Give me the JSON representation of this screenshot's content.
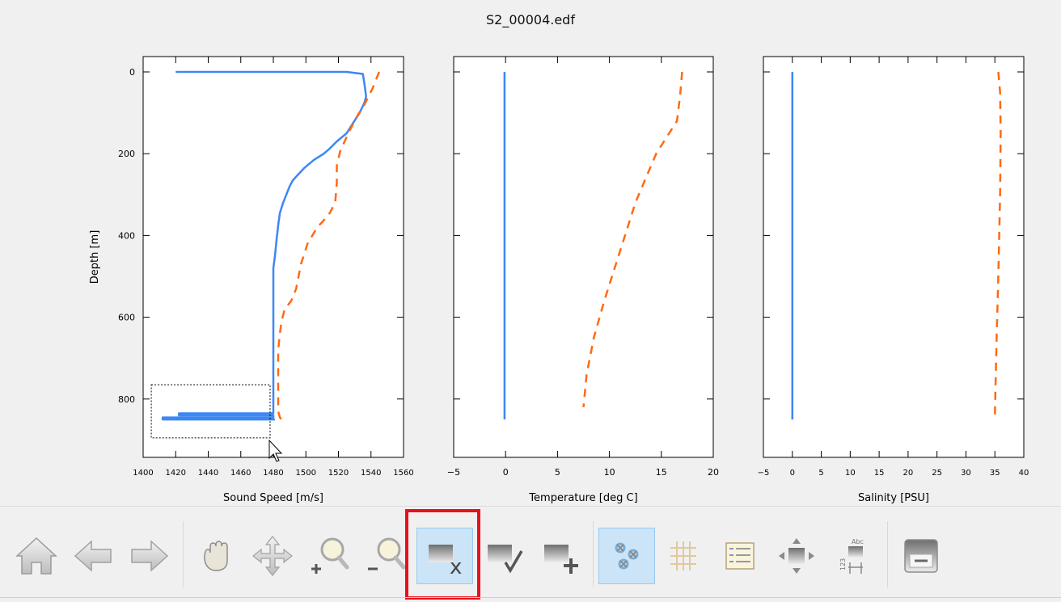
{
  "window": {
    "title": "S2_00004.edf"
  },
  "chart_data": [
    {
      "type": "line",
      "xlabel": "Sound Speed [m/s]",
      "ylabel": "Depth [m]",
      "xlim": [
        1400,
        1560
      ],
      "ylim": [
        850,
        0
      ],
      "y_inverted": true,
      "xticks": [
        1400,
        1420,
        1440,
        1460,
        1480,
        1500,
        1520,
        1540,
        1560
      ],
      "yticks": [
        0,
        200,
        400,
        600,
        800
      ],
      "series": [
        {
          "style": "solid",
          "color": "#3d87f5",
          "points": [
            [
              1420,
              0
            ],
            [
              1525,
              0
            ],
            [
              1535,
              5
            ],
            [
              1536,
              30
            ],
            [
              1537,
              60
            ],
            [
              1536,
              75
            ],
            [
              1533,
              100
            ],
            [
              1529,
              125
            ],
            [
              1525,
              150
            ],
            [
              1519,
              170
            ],
            [
              1514,
              190
            ],
            [
              1511,
              200
            ],
            [
              1505,
              215
            ],
            [
              1499,
              235
            ],
            [
              1492,
              265
            ],
            [
              1490,
              280
            ],
            [
              1488,
              300
            ],
            [
              1486,
              320
            ],
            [
              1484,
              345
            ],
            [
              1483,
              375
            ],
            [
              1482,
              410
            ],
            [
              1481,
              450
            ],
            [
              1480,
              480
            ],
            [
              1480,
              550
            ],
            [
              1480,
              650
            ],
            [
              1480,
              760
            ],
            [
              1480,
              835
            ],
            [
              1422,
              835
            ],
            [
              1422,
              840
            ],
            [
              1480,
              840
            ],
            [
              1480,
              845
            ],
            [
              1412,
              845
            ],
            [
              1412,
              850
            ],
            [
              1481,
              850
            ]
          ]
        },
        {
          "style": "dashed",
          "color": "#ff6a13",
          "points": [
            [
              1545,
              0
            ],
            [
              1541,
              40
            ],
            [
              1536,
              80
            ],
            [
              1532,
              105
            ],
            [
              1526,
              150
            ],
            [
              1521,
              195
            ],
            [
              1519,
              230
            ],
            [
              1519,
              270
            ],
            [
              1518,
              320
            ],
            [
              1514,
              350
            ],
            [
              1507,
              380
            ],
            [
              1501,
              420
            ],
            [
              1497,
              470
            ],
            [
              1494,
              530
            ],
            [
              1491,
              560
            ],
            [
              1487,
              580
            ],
            [
              1485,
              610
            ],
            [
              1484,
              640
            ],
            [
              1483,
              680
            ],
            [
              1483,
              760
            ],
            [
              1483,
              830
            ],
            [
              1484,
              845
            ],
            [
              1485,
              850
            ]
          ]
        }
      ]
    },
    {
      "type": "line",
      "xlabel": "Temperature [deg C]",
      "ylabel": "",
      "xlim": [
        -5,
        20
      ],
      "ylim": [
        850,
        0
      ],
      "y_inverted": true,
      "xticks": [
        -5,
        0,
        5,
        10,
        15,
        20
      ],
      "yticks": [
        0,
        200,
        400,
        600,
        800
      ],
      "series": [
        {
          "style": "solid",
          "color": "#3d87f5",
          "points": [
            [
              -0.1,
              0
            ],
            [
              -0.1,
              850
            ]
          ]
        },
        {
          "style": "dashed",
          "color": "#ff6a13",
          "points": [
            [
              17.0,
              0
            ],
            [
              16.8,
              60
            ],
            [
              16.5,
              120
            ],
            [
              15.5,
              160
            ],
            [
              14.5,
              200
            ],
            [
              13.5,
              260
            ],
            [
              12.5,
              320
            ],
            [
              11.5,
              400
            ],
            [
              10.5,
              480
            ],
            [
              9.5,
              560
            ],
            [
              8.5,
              650
            ],
            [
              7.8,
              740
            ],
            [
              7.5,
              820
            ]
          ]
        }
      ]
    },
    {
      "type": "line",
      "xlabel": "Salinity [PSU]",
      "ylabel": "",
      "xlim": [
        -5,
        40
      ],
      "ylim": [
        850,
        0
      ],
      "y_inverted": true,
      "xticks": [
        -5,
        0,
        5,
        10,
        15,
        20,
        25,
        30,
        35,
        40
      ],
      "yticks": [
        0,
        200,
        400,
        600,
        800
      ],
      "series": [
        {
          "style": "solid",
          "color": "#3d87f5",
          "points": [
            [
              0,
              0
            ],
            [
              0,
              850
            ]
          ]
        },
        {
          "style": "dashed",
          "color": "#ff6a13",
          "points": [
            [
              35.6,
              0
            ],
            [
              35.9,
              50
            ],
            [
              36.0,
              150
            ],
            [
              35.9,
              300
            ],
            [
              35.6,
              500
            ],
            [
              35.3,
              650
            ],
            [
              35.1,
              780
            ],
            [
              35.0,
              850
            ]
          ]
        }
      ]
    }
  ],
  "zoom_box": {
    "x0": 1405,
    "x1": 1478,
    "y0": 765,
    "y1": 895
  },
  "toolbar": {
    "items": [
      {
        "name": "home-button",
        "icon": "home-icon",
        "active": false
      },
      {
        "name": "back-button",
        "icon": "arrow-left-icon",
        "active": false
      },
      {
        "name": "forward-button",
        "icon": "arrow-right-icon",
        "active": false
      },
      {
        "name": "pan-hand-button",
        "icon": "hand-icon",
        "active": false
      },
      {
        "name": "pan-move-button",
        "icon": "move-arrows-icon",
        "active": false
      },
      {
        "name": "zoom-in-button",
        "icon": "zoom-in-icon",
        "active": false
      },
      {
        "name": "zoom-out-button",
        "icon": "zoom-out-icon",
        "active": false
      },
      {
        "name": "flag-remove-button",
        "icon": "flag-remove-icon",
        "active": true
      },
      {
        "name": "flag-accept-button",
        "icon": "flag-accept-icon",
        "active": false
      },
      {
        "name": "flag-add-button",
        "icon": "flag-add-icon",
        "active": false
      },
      {
        "name": "toggle-flagged-button",
        "icon": "flag-points-icon",
        "active": true
      },
      {
        "name": "grid-button",
        "icon": "grid-icon",
        "active": false
      },
      {
        "name": "legend-button",
        "icon": "legend-icon",
        "active": false
      },
      {
        "name": "resize-button",
        "icon": "resize-arrows-icon",
        "active": false
      },
      {
        "name": "labels-button",
        "icon": "abc-labels-icon",
        "active": false
      },
      {
        "name": "save-button",
        "icon": "save-icon",
        "active": false
      }
    ]
  },
  "colors": {
    "solid_series": "#3d87f5",
    "dashed_series": "#ff6a13",
    "highlight": "#e8101b",
    "active_button": "#cce4f7"
  }
}
